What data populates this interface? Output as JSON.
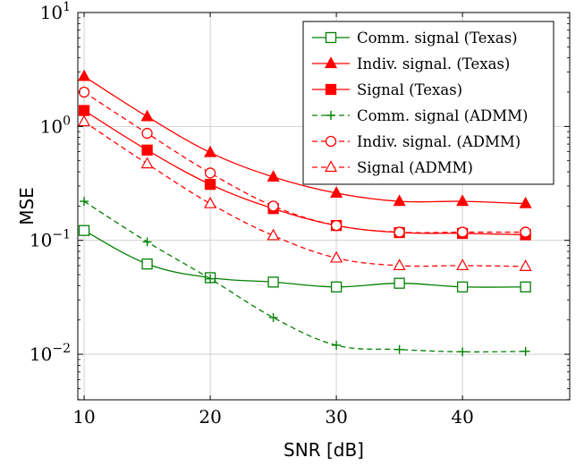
{
  "chart_data": {
    "type": "line",
    "xlabel": "SNR [dB]",
    "ylabel": "MSE",
    "y_scale": "log",
    "xlim": [
      9.5,
      48.5
    ],
    "ylim_log10": [
      -2.4,
      1.0
    ],
    "x_ticks": [
      10,
      20,
      30,
      40
    ],
    "y_ticks": [
      {
        "exp": -2,
        "base": "10",
        "sup": "−2"
      },
      {
        "exp": -1,
        "base": "10",
        "sup": "−1"
      },
      {
        "exp": 0,
        "base": "10",
        "sup": "0"
      },
      {
        "exp": 1,
        "base": "10",
        "sup": "1"
      }
    ],
    "grid": true,
    "legend_position": "top-right",
    "x": [
      10,
      15,
      20,
      25,
      30,
      35,
      40,
      45
    ],
    "series": [
      {
        "name": "Comm. signal (Texas)",
        "color": "#008000",
        "dash": "solid",
        "marker": "square-open",
        "values": [
          0.122,
          0.062,
          0.047,
          0.043,
          0.039,
          0.042,
          0.039,
          0.039
        ]
      },
      {
        "name": "Indiv. signal. (Texas)",
        "color": "#ff0000",
        "dash": "solid",
        "marker": "triangle-filled",
        "values": [
          2.75,
          1.22,
          0.59,
          0.36,
          0.26,
          0.22,
          0.22,
          0.21
        ]
      },
      {
        "name": "Signal (Texas)",
        "color": "#ff0000",
        "dash": "solid",
        "marker": "square-filled",
        "values": [
          1.38,
          0.62,
          0.31,
          0.19,
          0.135,
          0.117,
          0.115,
          0.112
        ]
      },
      {
        "name": "Comm. signal (ADMM)",
        "color": "#008000",
        "dash": "dashed",
        "marker": "plus",
        "values": [
          0.22,
          0.097,
          0.046,
          0.021,
          0.012,
          0.011,
          0.0105,
          0.0106
        ]
      },
      {
        "name": "Indiv. signal. (ADMM)",
        "color": "#ff0000",
        "dash": "dashed",
        "marker": "circle-open",
        "values": [
          2.0,
          0.87,
          0.39,
          0.2,
          0.135,
          0.118,
          0.118,
          0.118
        ]
      },
      {
        "name": "Signal (ADMM)",
        "color": "#ff0000",
        "dash": "dashed",
        "marker": "triangle-open",
        "values": [
          1.1,
          0.47,
          0.21,
          0.11,
          0.07,
          0.06,
          0.06,
          0.059
        ]
      }
    ]
  }
}
